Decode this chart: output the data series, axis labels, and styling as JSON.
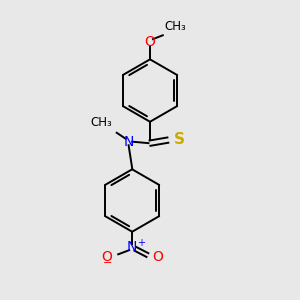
{
  "background_color": "#e8e8e8",
  "bond_color": "#000000",
  "atom_colors": {
    "O": "#ff0000",
    "S": "#ccaa00",
    "N": "#0000ff",
    "C": "#000000"
  },
  "font_size": 10,
  "small_font": 8.5,
  "sup_font": 7,
  "ring_r": 0.105,
  "lw": 1.4,
  "r1cx": 0.5,
  "r1cy": 0.7,
  "r2cx": 0.44,
  "r2cy": 0.33
}
